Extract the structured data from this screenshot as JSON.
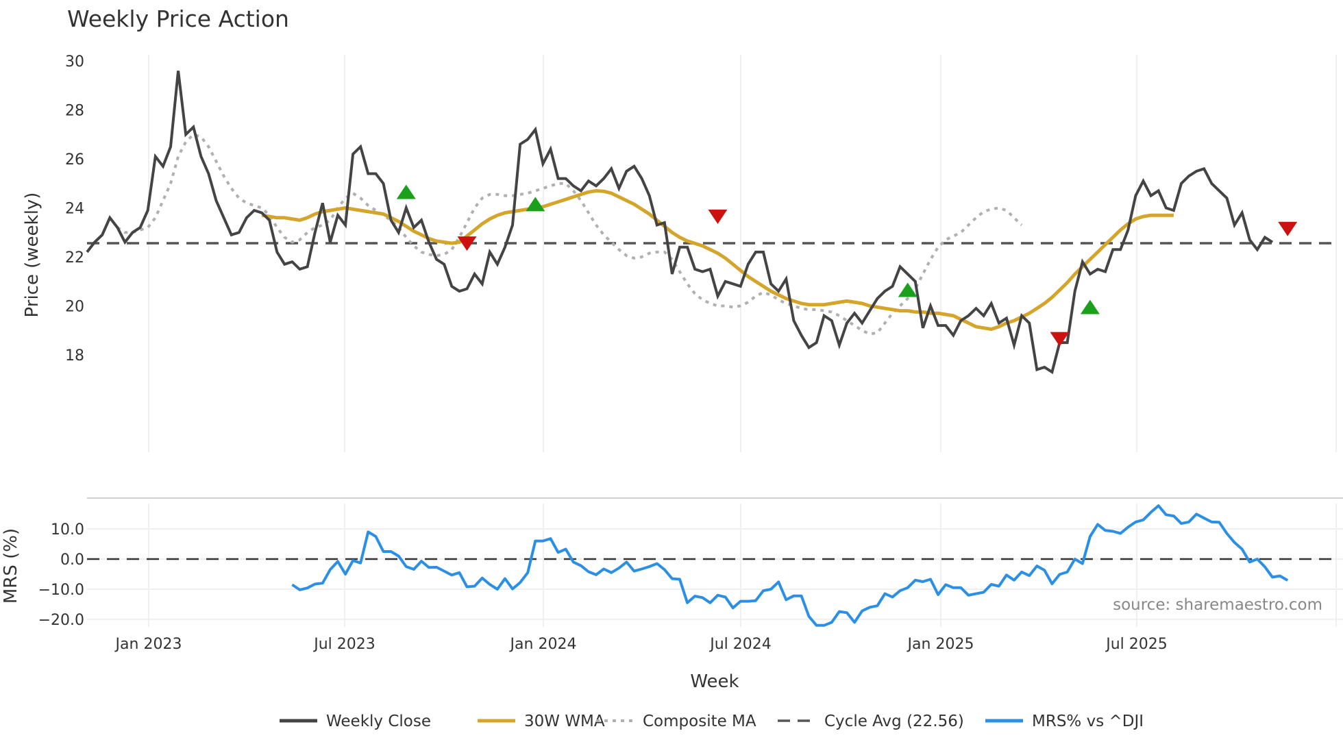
{
  "chart_data": [
    {
      "type": "line",
      "title": "Weekly Price Action",
      "xlabel": "Week",
      "ylabel": "Price (weekly)",
      "ylim": [
        16.7,
        30.4
      ],
      "yticks": [
        18,
        20,
        22,
        24,
        26,
        28,
        30
      ],
      "xticks": [
        "Jan 2023",
        "Jul 2023",
        "Jan 2024",
        "Jul 2024",
        "Jan 2025",
        "Jul 2025"
      ],
      "grid": true,
      "x_start": "2022-11-07",
      "x_step": "1 week",
      "series": [
        {
          "name": "Weekly Close",
          "color": "#444444",
          "style": "solid",
          "start_index": 0,
          "values": [
            22.2,
            22.6,
            22.9,
            23.6,
            23.2,
            22.6,
            23.0,
            23.2,
            23.9,
            26.1,
            25.7,
            26.5,
            29.6,
            27.0,
            27.3,
            26.1,
            25.4,
            24.3,
            23.6,
            22.9,
            23.0,
            23.6,
            23.9,
            23.8,
            23.5,
            22.2,
            21.7,
            21.8,
            21.5,
            21.6,
            23.0,
            24.2,
            22.6,
            23.7,
            23.3,
            26.2,
            26.5,
            25.4,
            25.4,
            25.0,
            23.5,
            23.0,
            24.0,
            23.2,
            23.5,
            22.6,
            21.9,
            21.7,
            20.8,
            20.6,
            20.7,
            21.3,
            20.9,
            22.2,
            21.7,
            22.4,
            23.3,
            26.6,
            26.8,
            27.2,
            25.8,
            26.4,
            25.2,
            25.2,
            24.9,
            24.7,
            25.1,
            24.9,
            25.2,
            25.6,
            24.8,
            25.5,
            25.7,
            25.2,
            24.5,
            23.3,
            23.4,
            21.3,
            22.4,
            22.4,
            21.5,
            21.4,
            21.5,
            20.4,
            21.0,
            20.9,
            20.8,
            21.7,
            22.2,
            22.2,
            20.9,
            20.6,
            21.1,
            19.4,
            18.8,
            18.3,
            18.5,
            19.6,
            19.4,
            18.4,
            19.3,
            19.7,
            19.3,
            19.8,
            20.3,
            20.6,
            20.8,
            21.6,
            21.3,
            21.0,
            19.1,
            20.0,
            19.2,
            19.2,
            18.8,
            19.4,
            19.6,
            19.9,
            19.6,
            20.1,
            19.3,
            19.5,
            18.4,
            19.6,
            19.3,
            17.4,
            17.5,
            17.3,
            18.5,
            18.5,
            20.6,
            21.8,
            21.3,
            21.5,
            21.4,
            22.3,
            22.3,
            23.1,
            24.5,
            25.1,
            24.5,
            24.7,
            24.0,
            23.9,
            25.0,
            25.3,
            25.5,
            25.6,
            25.0,
            24.7,
            24.4,
            23.3,
            23.8,
            22.7,
            22.3,
            22.8,
            22.6
          ]
        },
        {
          "name": "30W WMA",
          "color": "#d4a52a",
          "style": "solid",
          "start_index": 23,
          "values": [
            23.7,
            23.65,
            23.6,
            23.6,
            23.55,
            23.5,
            23.6,
            23.75,
            23.85,
            23.9,
            23.95,
            24.0,
            23.95,
            23.9,
            23.85,
            23.8,
            23.75,
            23.6,
            23.45,
            23.25,
            23.05,
            22.9,
            22.75,
            22.65,
            22.6,
            22.56,
            22.6,
            22.85,
            23.1,
            23.35,
            23.55,
            23.7,
            23.8,
            23.85,
            23.9,
            23.95,
            24.0,
            24.05,
            24.15,
            24.25,
            24.35,
            24.45,
            24.55,
            24.65,
            24.7,
            24.68,
            24.6,
            24.45,
            24.3,
            24.15,
            23.95,
            23.75,
            23.5,
            23.25,
            23.0,
            22.8,
            22.65,
            22.55,
            22.45,
            22.3,
            22.15,
            21.95,
            21.7,
            21.45,
            21.2,
            21.0,
            20.8,
            20.6,
            20.45,
            20.3,
            20.2,
            20.1,
            20.05,
            20.05,
            20.05,
            20.1,
            20.15,
            20.2,
            20.15,
            20.1,
            20.0,
            19.95,
            19.9,
            19.85,
            19.8,
            19.8,
            19.75,
            19.75,
            19.7,
            19.7,
            19.65,
            19.6,
            19.45,
            19.3,
            19.15,
            19.1,
            19.05,
            19.15,
            19.3,
            19.4,
            19.55,
            19.7,
            19.9,
            20.1,
            20.35,
            20.65,
            20.95,
            21.3,
            21.6,
            21.9,
            22.2,
            22.5,
            22.8,
            23.1,
            23.35,
            23.55,
            23.65,
            23.7,
            23.7,
            23.7,
            23.7
          ]
        },
        {
          "name": "Composite MA",
          "color": "#b0b0b0",
          "style": "dotted",
          "start_index": 4,
          "values": [
            23.2,
            23.0,
            23.0,
            23.1,
            23.2,
            23.6,
            24.3,
            25.0,
            26.1,
            26.7,
            27.0,
            26.9,
            26.5,
            25.9,
            25.3,
            24.8,
            24.4,
            24.2,
            24.1,
            24.0,
            23.7,
            23.2,
            22.8,
            22.6,
            22.7,
            23.0,
            23.2,
            23.3,
            23.5,
            24.0,
            24.4,
            24.6,
            24.4,
            24.1,
            23.9,
            23.7,
            23.5,
            23.2,
            22.8,
            22.45,
            22.2,
            22.1,
            22.05,
            22.1,
            22.3,
            22.8,
            23.4,
            24.0,
            24.4,
            24.55,
            24.55,
            24.5,
            24.5,
            24.55,
            24.6,
            24.7,
            24.8,
            24.9,
            25.0,
            25.0,
            24.7,
            24.3,
            23.8,
            23.3,
            22.9,
            22.6,
            22.3,
            22.05,
            21.95,
            22.0,
            22.15,
            22.2,
            22.2,
            21.9,
            21.4,
            20.9,
            20.5,
            20.25,
            20.1,
            20.0,
            20.0,
            19.95,
            20.0,
            20.15,
            20.4,
            20.55,
            20.45,
            20.25,
            20.1,
            20.0,
            19.9,
            19.85,
            19.85,
            19.8,
            19.75,
            19.6,
            19.4,
            19.2,
            19.0,
            18.85,
            18.9,
            19.3,
            19.7,
            20.0,
            20.3,
            20.7,
            21.3,
            21.9,
            22.4,
            22.7,
            22.85,
            23.0,
            23.3,
            23.6,
            23.85,
            23.95,
            24.0,
            23.9,
            23.6,
            23.3
          ]
        },
        {
          "name": "Cycle Avg (22.56)",
          "color": "#555555",
          "style": "dashed",
          "constant": 22.56
        }
      ],
      "markers": [
        {
          "type": "buy",
          "shape": "triangle-up",
          "color": "#1aa01a",
          "week_index": 42,
          "value": 24.6
        },
        {
          "type": "sell",
          "shape": "triangle-down",
          "color": "#cc1111",
          "week_index": 50,
          "value": 22.6
        },
        {
          "type": "buy",
          "shape": "triangle-up",
          "color": "#1aa01a",
          "week_index": 59,
          "value": 24.1
        },
        {
          "type": "sell",
          "shape": "triangle-down",
          "color": "#cc1111",
          "week_index": 83,
          "value": 23.7
        },
        {
          "type": "buy",
          "shape": "triangle-up",
          "color": "#1aa01a",
          "week_index": 108,
          "value": 20.6
        },
        {
          "type": "sell",
          "shape": "triangle-down",
          "color": "#cc1111",
          "week_index": 128,
          "value": 18.7
        },
        {
          "type": "buy",
          "shape": "triangle-up",
          "color": "#1aa01a",
          "week_index": 132,
          "value": 19.9
        },
        {
          "type": "sell",
          "shape": "triangle-down",
          "color": "#cc1111",
          "week_index": 158,
          "value": 23.2
        }
      ]
    },
    {
      "type": "line",
      "title": "",
      "xlabel": "Week",
      "ylabel": "MRS (%)",
      "ylim": [
        -24,
        20
      ],
      "yticks": [
        -20.0,
        -10.0,
        0.0,
        10.0
      ],
      "grid": true,
      "series": [
        {
          "name": "MRS% vs ^DJI",
          "color": "#2b8fe6",
          "style": "solid",
          "start_index": 27,
          "values": [
            -8.5,
            -10.2,
            -9.6,
            -8.3,
            -8.0,
            -3.5,
            -0.8,
            -5.0,
            -0.5,
            -1.3,
            9.0,
            7.5,
            2.5,
            2.5,
            1.0,
            -2.5,
            -3.4,
            -0.7,
            -2.8,
            -2.7,
            -4.0,
            -5.3,
            -4.5,
            -9.2,
            -9.0,
            -6.3,
            -8.4,
            -10.0,
            -6.5,
            -9.9,
            -7.8,
            -4.5,
            6.0,
            6.0,
            6.8,
            2.2,
            3.3,
            -1.0,
            -2.2,
            -4.2,
            -5.2,
            -3.3,
            -4.5,
            -3.0,
            -1.0,
            -4.0,
            -3.3,
            -2.5,
            -1.5,
            -3.5,
            -6.5,
            -6.7,
            -14.5,
            -12.3,
            -12.8,
            -14.5,
            -12.0,
            -12.6,
            -16.2,
            -14.0,
            -14.0,
            -13.8,
            -10.5,
            -10.0,
            -7.6,
            -13.5,
            -12.2,
            -12.2,
            -19.0,
            -22.0,
            -22.0,
            -21.0,
            -17.4,
            -17.8,
            -21.0,
            -17.2,
            -16.0,
            -15.5,
            -11.5,
            -12.6,
            -10.5,
            -9.5,
            -7.0,
            -7.5,
            -6.7,
            -11.8,
            -8.5,
            -9.5,
            -9.5,
            -12.0,
            -11.5,
            -11.0,
            -8.4,
            -9.0,
            -5.3,
            -7.0,
            -4.3,
            -5.5,
            -2.3,
            -3.7,
            -8.2,
            -5.1,
            -4.3,
            0.0,
            -1.5,
            7.5,
            11.5,
            9.5,
            9.2,
            8.5,
            10.6,
            12.3,
            13.0,
            15.5,
            17.7,
            14.7,
            14.3,
            11.8,
            12.3,
            14.9,
            13.6,
            12.3,
            12.2,
            8.5,
            5.5,
            3.3,
            -1.0,
            0.0,
            -2.6,
            -6.0,
            -5.6,
            -7.1
          ]
        },
        {
          "name": "zero line",
          "color": "#333333",
          "style": "dashed",
          "constant": 0
        }
      ],
      "annotations": [
        "source: sharemaestro.com"
      ]
    }
  ],
  "header": {
    "title": "Weekly Price Action"
  },
  "axes": {
    "price_ylabel": "Price (weekly)",
    "mrs_ylabel": "MRS (%)",
    "xlabel": "Week",
    "price_ticks": [
      "30",
      "28",
      "26",
      "24",
      "22",
      "20",
      "18"
    ],
    "mrs_ticks": [
      "10.0",
      "0.0",
      "−10.0",
      "−20.0"
    ],
    "x_ticks": [
      "Jan 2023",
      "Jul 2023",
      "Jan 2024",
      "Jul 2024",
      "Jan 2025",
      "Jul 2025"
    ]
  },
  "legend": {
    "items": [
      {
        "label": "Weekly Close",
        "color": "#444444",
        "style": "solid"
      },
      {
        "label": "30W WMA",
        "color": "#d4a52a",
        "style": "solid"
      },
      {
        "label": "Composite MA",
        "color": "#b0b0b0",
        "style": "dotted"
      },
      {
        "label": "Cycle Avg (22.56)",
        "color": "#555555",
        "style": "dashed"
      },
      {
        "label": "MRS% vs ^DJI",
        "color": "#2b8fe6",
        "style": "solid"
      }
    ]
  },
  "source_note": "source: sharemaestro.com",
  "colors": {
    "close": "#444444",
    "wma": "#d4a52a",
    "composite": "#b0b0b0",
    "cycle": "#555555",
    "mrs": "#2b8fe6",
    "buy": "#1aa01a",
    "sell": "#cc1111",
    "grid": "#eef0f3"
  }
}
